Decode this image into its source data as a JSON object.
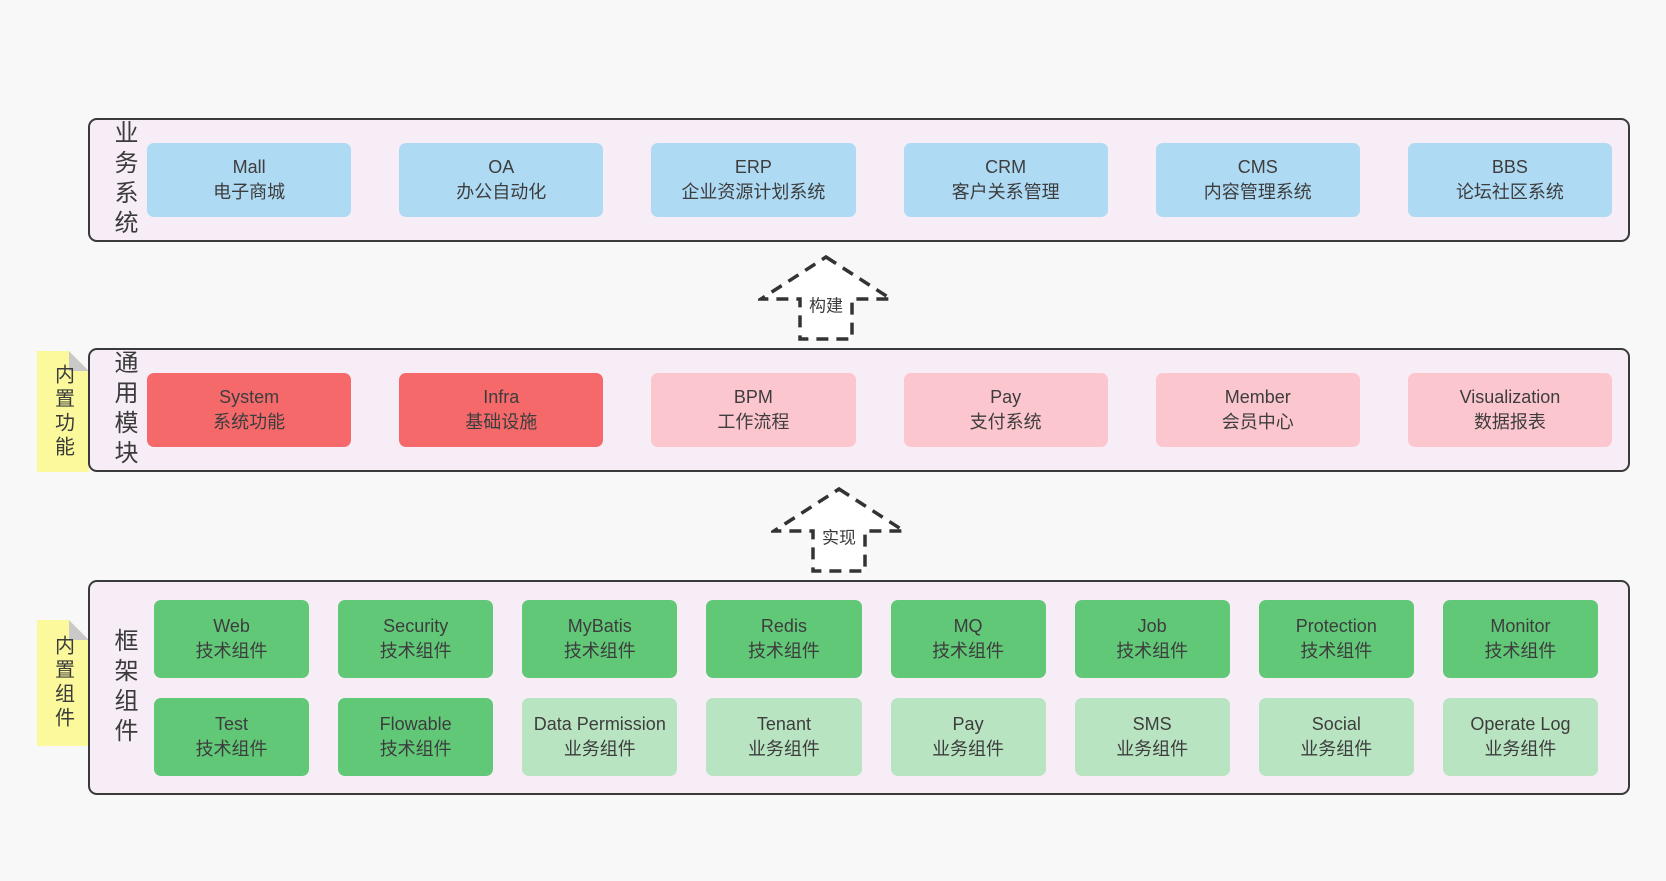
{
  "palette": {
    "page_bg": "#f8f8f8",
    "panel_bg": "#f7edf6",
    "panel_border": "#3a3a3a",
    "text": "#3b3b3b",
    "blue": "#aedaf4",
    "red": "#f5696b",
    "pink": "#fcc6ce",
    "green": "#61c878",
    "light_green": "#b9e4c2",
    "sticky_yellow": "#fbf99c",
    "sticky_fold": "#c9c9c9",
    "arrow_stroke": "#333333",
    "arrow_fill": "#ffffff"
  },
  "layers": [
    {
      "id": "business",
      "label": "业务系统",
      "rows": [
        [
          {
            "en": "Mall",
            "zh": "电子商城",
            "color": "blue"
          },
          {
            "en": "OA",
            "zh": "办公自动化",
            "color": "blue"
          },
          {
            "en": "ERP",
            "zh": "企业资源计划系统",
            "color": "blue"
          },
          {
            "en": "CRM",
            "zh": "客户关系管理",
            "color": "blue"
          },
          {
            "en": "CMS",
            "zh": "内容管理系统",
            "color": "blue"
          },
          {
            "en": "BBS",
            "zh": "论坛社区系统",
            "color": "blue"
          }
        ]
      ]
    },
    {
      "id": "modules",
      "label": "通用模块",
      "sticky": "内置功能",
      "rows": [
        [
          {
            "en": "System",
            "zh": "系统功能",
            "color": "red"
          },
          {
            "en": "Infra",
            "zh": "基础设施",
            "color": "red"
          },
          {
            "en": "BPM",
            "zh": "工作流程",
            "color": "pink"
          },
          {
            "en": "Pay",
            "zh": "支付系统",
            "color": "pink"
          },
          {
            "en": "Member",
            "zh": "会员中心",
            "color": "pink"
          },
          {
            "en": "Visualization",
            "zh": "数据报表",
            "color": "pink"
          }
        ]
      ]
    },
    {
      "id": "framework",
      "label": "框架组件",
      "sticky": "内置组件",
      "rows": [
        [
          {
            "en": "Web",
            "zh": "技术组件",
            "color": "green"
          },
          {
            "en": "Security",
            "zh": "技术组件",
            "color": "green"
          },
          {
            "en": "MyBatis",
            "zh": "技术组件",
            "color": "green"
          },
          {
            "en": "Redis",
            "zh": "技术组件",
            "color": "green"
          },
          {
            "en": "MQ",
            "zh": "技术组件",
            "color": "green"
          },
          {
            "en": "Job",
            "zh": "技术组件",
            "color": "green"
          },
          {
            "en": "Protection",
            "zh": "技术组件",
            "color": "green"
          },
          {
            "en": "Monitor",
            "zh": "技术组件",
            "color": "green"
          }
        ],
        [
          {
            "en": "Test",
            "zh": "技术组件",
            "color": "green"
          },
          {
            "en": "Flowable",
            "zh": "技术组件",
            "color": "green"
          },
          {
            "en": "Data Permission",
            "zh": "业务组件",
            "color": "light_green"
          },
          {
            "en": "Tenant",
            "zh": "业务组件",
            "color": "light_green"
          },
          {
            "en": "Pay",
            "zh": "业务组件",
            "color": "light_green"
          },
          {
            "en": "SMS",
            "zh": "业务组件",
            "color": "light_green"
          },
          {
            "en": "Social",
            "zh": "业务组件",
            "color": "light_green"
          },
          {
            "en": "Operate Log",
            "zh": "业务组件",
            "color": "light_green"
          }
        ]
      ]
    }
  ],
  "arrows": [
    {
      "label": "构建"
    },
    {
      "label": "实现"
    }
  ]
}
